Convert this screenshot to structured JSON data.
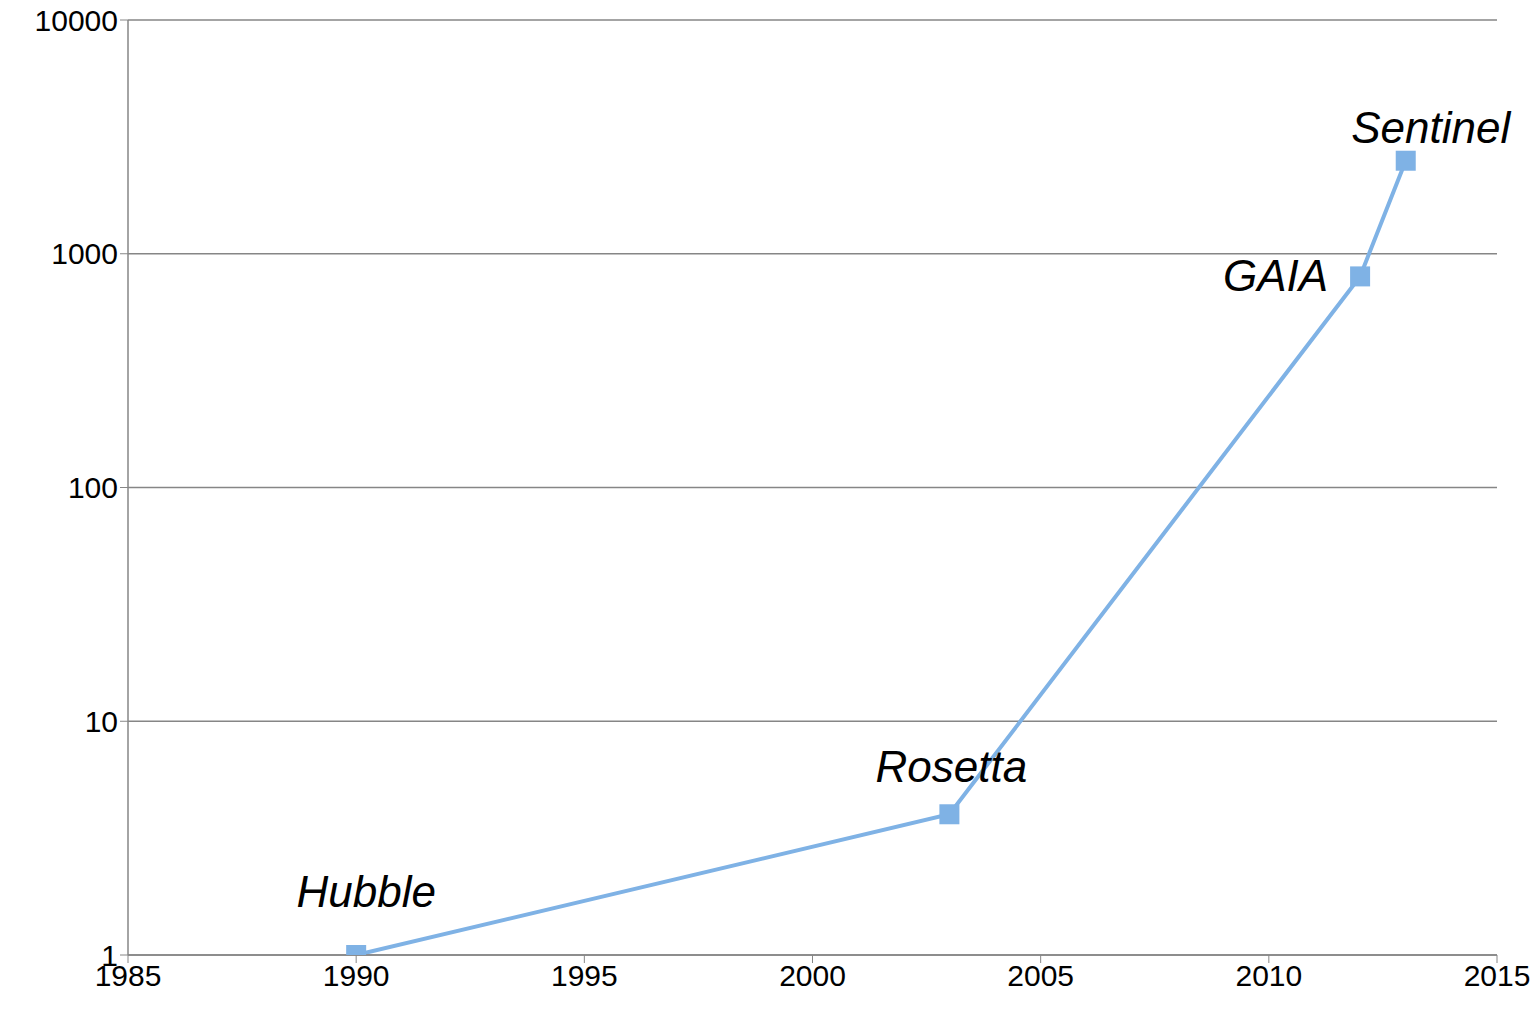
{
  "chart_data": {
    "type": "line",
    "x": [
      1990,
      2003,
      2012,
      2013
    ],
    "values": [
      1,
      4,
      800,
      2500
    ],
    "annotations": [
      "Hubble",
      "Rosetta",
      "GAIA",
      "Sentinel"
    ],
    "color": "#7fb2e5",
    "marker": "square",
    "line_style": "solid",
    "xlim": [
      1985,
      2015
    ],
    "xticks": [
      1985,
      1990,
      1995,
      2000,
      2005,
      2010,
      2015
    ],
    "ylim": [
      1,
      10000
    ],
    "yticks": [
      1,
      10,
      100,
      1000,
      10000
    ],
    "log": "y",
    "grid": true
  }
}
